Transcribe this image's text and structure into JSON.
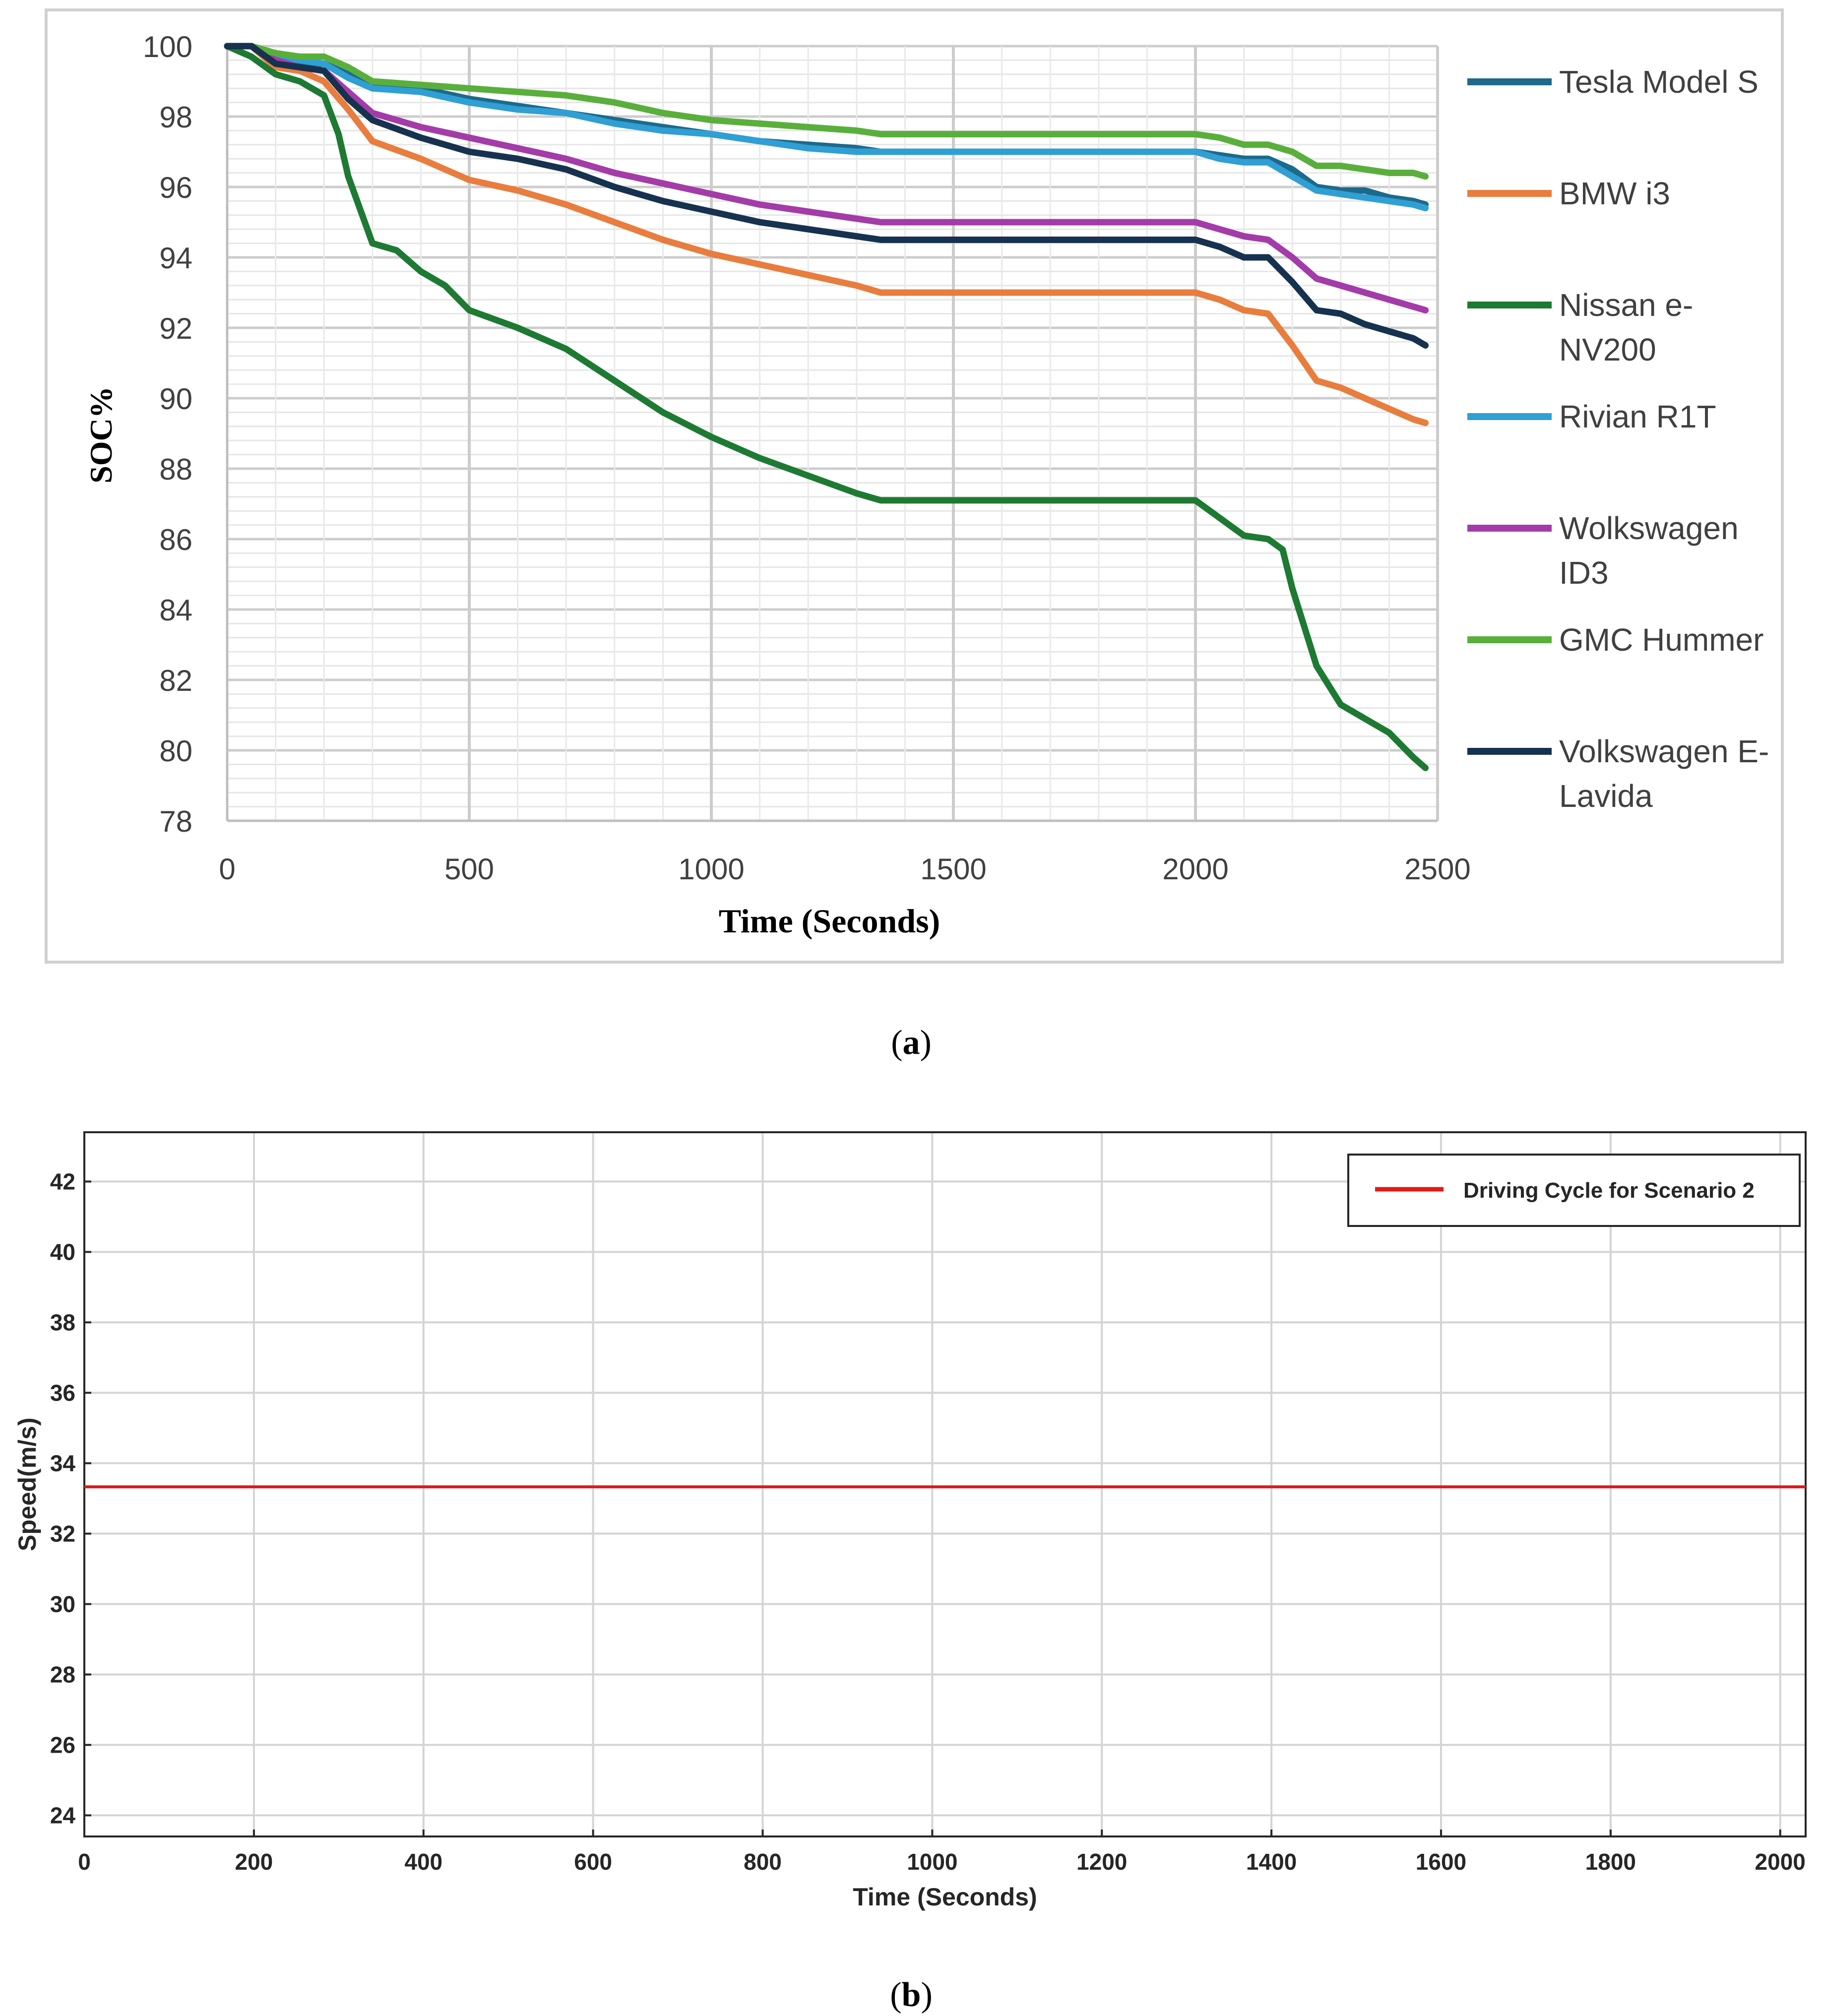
{
  "chart_data": [
    {
      "type": "line",
      "panel_label": "a",
      "title": "",
      "xlabel": "Time (Seconds)",
      "ylabel": "SOC%",
      "xlim": [
        0,
        2500
      ],
      "ylim": [
        78,
        100
      ],
      "xticks": [
        "0",
        "500",
        "1000",
        "1500",
        "2000",
        "2500"
      ],
      "yticks": [
        "78",
        "80",
        "82",
        "84",
        "86",
        "88",
        "90",
        "92",
        "94",
        "96",
        "98",
        "100"
      ],
      "grid": "major and minor",
      "legend_position": "right",
      "series": [
        {
          "name": "Tesla Model S",
          "color": "#1d6a8a",
          "x": [
            0,
            50,
            100,
            150,
            200,
            250,
            300,
            400,
            500,
            600,
            700,
            800,
            900,
            1000,
            1100,
            1200,
            1300,
            1350,
            1500,
            1800,
            2000,
            2050,
            2100,
            2150,
            2200,
            2250,
            2300,
            2350,
            2400,
            2450,
            2475
          ],
          "values": [
            100,
            100,
            99.6,
            99.5,
            99.5,
            99.2,
            98.9,
            98.8,
            98.5,
            98.3,
            98.1,
            97.9,
            97.7,
            97.5,
            97.3,
            97.2,
            97.1,
            97.0,
            97.0,
            97.0,
            97.0,
            96.9,
            96.8,
            96.8,
            96.5,
            96.0,
            95.9,
            95.9,
            95.7,
            95.6,
            95.5
          ]
        },
        {
          "name": "BMW i3",
          "color": "#e87d3e",
          "x": [
            0,
            50,
            100,
            150,
            200,
            250,
            300,
            400,
            500,
            600,
            700,
            800,
            900,
            1000,
            1100,
            1200,
            1300,
            1350,
            1500,
            1800,
            2000,
            2050,
            2100,
            2150,
            2200,
            2250,
            2300,
            2350,
            2400,
            2450,
            2475
          ],
          "values": [
            100,
            100,
            99.4,
            99.3,
            99.0,
            98.2,
            97.3,
            96.8,
            96.2,
            95.9,
            95.5,
            95.0,
            94.5,
            94.1,
            93.8,
            93.5,
            93.2,
            93.0,
            93.0,
            93.0,
            93.0,
            92.8,
            92.5,
            92.4,
            91.5,
            90.5,
            90.3,
            90.0,
            89.7,
            89.4,
            89.3
          ]
        },
        {
          "name": "Nissan e-NV200",
          "color": "#1e7a33",
          "x": [
            0,
            50,
            100,
            150,
            200,
            230,
            250,
            300,
            350,
            400,
            450,
            500,
            600,
            700,
            800,
            900,
            1000,
            1100,
            1200,
            1300,
            1350,
            1500,
            1800,
            2000,
            2050,
            2100,
            2150,
            2180,
            2200,
            2250,
            2300,
            2350,
            2400,
            2450,
            2475
          ],
          "values": [
            100,
            99.7,
            99.2,
            99.0,
            98.6,
            97.5,
            96.3,
            94.4,
            94.2,
            93.6,
            93.2,
            92.5,
            92.0,
            91.4,
            90.5,
            89.6,
            88.9,
            88.3,
            87.8,
            87.3,
            87.1,
            87.1,
            87.1,
            87.1,
            86.6,
            86.1,
            86.0,
            85.7,
            84.6,
            82.4,
            81.3,
            80.9,
            80.5,
            79.8,
            79.5
          ]
        },
        {
          "name": "Rivian R1T",
          "color": "#2f9fd4",
          "x": [
            0,
            50,
            100,
            150,
            200,
            250,
            300,
            400,
            500,
            600,
            700,
            800,
            900,
            1000,
            1100,
            1200,
            1300,
            1350,
            1500,
            1800,
            2000,
            2050,
            2100,
            2150,
            2200,
            2250,
            2300,
            2350,
            2400,
            2450,
            2475
          ],
          "values": [
            100,
            100,
            99.7,
            99.6,
            99.5,
            99.1,
            98.8,
            98.7,
            98.4,
            98.2,
            98.1,
            97.8,
            97.6,
            97.5,
            97.3,
            97.1,
            97.0,
            97.0,
            97.0,
            97.0,
            97.0,
            96.8,
            96.7,
            96.7,
            96.3,
            95.9,
            95.8,
            95.7,
            95.6,
            95.5,
            95.4
          ]
        },
        {
          "name": "Wolkswagen ID3",
          "color": "#a33ca8",
          "x": [
            0,
            50,
            100,
            150,
            200,
            250,
            300,
            400,
            500,
            600,
            700,
            800,
            900,
            1000,
            1100,
            1200,
            1300,
            1350,
            1500,
            1800,
            2000,
            2050,
            2100,
            2150,
            2200,
            2250,
            2300,
            2350,
            2400,
            2450,
            2475
          ],
          "values": [
            100,
            100,
            99.6,
            99.4,
            99.3,
            98.7,
            98.1,
            97.7,
            97.4,
            97.1,
            96.8,
            96.4,
            96.1,
            95.8,
            95.5,
            95.3,
            95.1,
            95.0,
            95.0,
            95.0,
            95.0,
            94.8,
            94.6,
            94.5,
            94.0,
            93.4,
            93.2,
            93.0,
            92.8,
            92.6,
            92.5
          ]
        },
        {
          "name": "GMC Hummer",
          "color": "#5aaf3c",
          "x": [
            0,
            50,
            100,
            150,
            200,
            250,
            300,
            400,
            500,
            600,
            700,
            800,
            900,
            1000,
            1100,
            1200,
            1300,
            1350,
            1500,
            1800,
            2000,
            2050,
            2100,
            2150,
            2200,
            2250,
            2300,
            2350,
            2400,
            2450,
            2475
          ],
          "values": [
            100,
            100,
            99.8,
            99.7,
            99.7,
            99.4,
            99.0,
            98.9,
            98.8,
            98.7,
            98.6,
            98.4,
            98.1,
            97.9,
            97.8,
            97.7,
            97.6,
            97.5,
            97.5,
            97.5,
            97.5,
            97.4,
            97.2,
            97.2,
            97.0,
            96.6,
            96.6,
            96.5,
            96.4,
            96.4,
            96.3
          ]
        },
        {
          "name": "Volkswagen E-Lavida",
          "color": "#16324f",
          "x": [
            0,
            50,
            100,
            150,
            200,
            250,
            300,
            400,
            500,
            600,
            700,
            800,
            900,
            1000,
            1100,
            1200,
            1300,
            1350,
            1500,
            1800,
            2000,
            2050,
            2100,
            2150,
            2200,
            2250,
            2300,
            2350,
            2400,
            2450,
            2475
          ],
          "values": [
            100,
            100,
            99.5,
            99.4,
            99.3,
            98.5,
            97.9,
            97.4,
            97.0,
            96.8,
            96.5,
            96.0,
            95.6,
            95.3,
            95.0,
            94.8,
            94.6,
            94.5,
            94.5,
            94.5,
            94.5,
            94.3,
            94.0,
            94.0,
            93.3,
            92.5,
            92.4,
            92.1,
            91.9,
            91.7,
            91.5
          ]
        }
      ]
    },
    {
      "type": "line",
      "panel_label": "b",
      "title": "",
      "xlabel": "Time (Seconds)",
      "ylabel": "Speed(m/s)",
      "xlim": [
        0,
        2030
      ],
      "ylim": [
        23.4,
        43.4
      ],
      "xticks": [
        "0",
        "200",
        "400",
        "600",
        "800",
        "1000",
        "1200",
        "1400",
        "1600",
        "1800",
        "2000"
      ],
      "yticks": [
        "24",
        "26",
        "28",
        "30",
        "32",
        "34",
        "36",
        "38",
        "40",
        "42"
      ],
      "grid": "major",
      "legend_position": "top-right",
      "series": [
        {
          "name": "Driving Cycle for Scenario 2",
          "color": "#e01b1b",
          "x": [
            0,
            2030
          ],
          "values": [
            33.33,
            33.33
          ]
        }
      ]
    }
  ],
  "labels": {
    "panel_a": "(a)",
    "panel_b": "(b)",
    "panel_a_prefix": "(",
    "panel_a_letter": "a",
    "panel_a_suffix": ")",
    "panel_b_prefix": "(",
    "panel_b_letter": "b",
    "panel_b_suffix": ")"
  },
  "legend_a_lines": [
    [
      "Tesla Model S"
    ],
    [
      "BMW i3"
    ],
    [
      "Nissan e-",
      "NV200"
    ],
    [
      "Rivian R1T"
    ],
    [
      "Wolkswagen",
      "ID3"
    ],
    [
      "GMC Hummer"
    ],
    [
      "Volkswagen E-",
      "Lavida"
    ]
  ]
}
